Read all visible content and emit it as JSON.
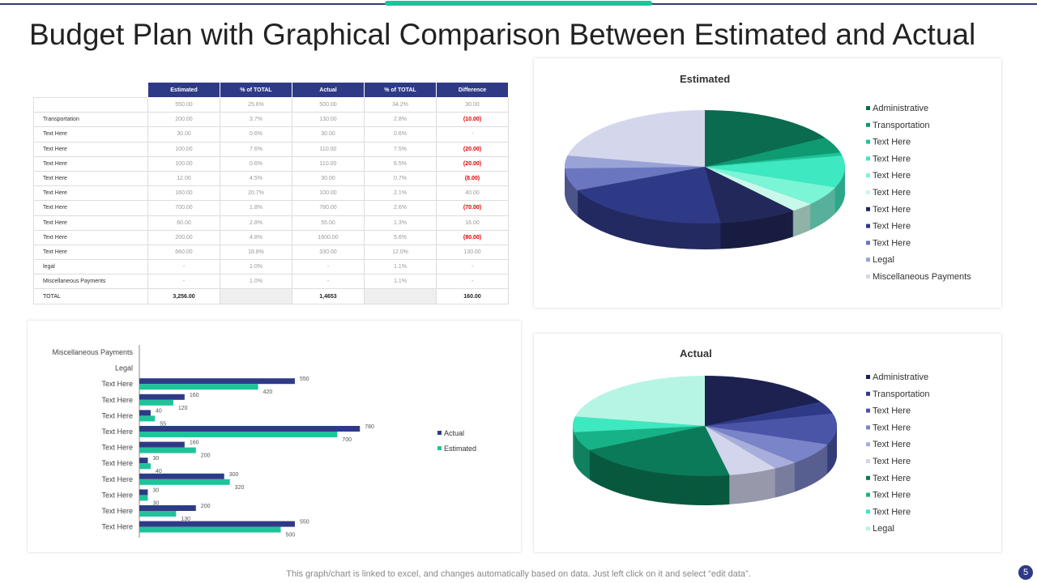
{
  "title": "Budget Plan with Graphical Comparison Between Estimated and Actual",
  "table": {
    "headers": [
      "Estimated",
      "% of TOTAL",
      "Actual",
      "% of TOTAL",
      "Difference"
    ],
    "rows": [
      {
        "label": "",
        "cells": [
          "550.00",
          "25.6%",
          "500.00",
          "34.2%",
          "30.00"
        ],
        "neg": false
      },
      {
        "label": "Transportation",
        "cells": [
          "200.00",
          "3.7%",
          "130.00",
          "2.8%",
          "(10.00)"
        ],
        "neg": true
      },
      {
        "label": "Text Here",
        "cells": [
          "30.00",
          "0.6%",
          "30.00",
          "0.6%",
          "-"
        ],
        "neg": false
      },
      {
        "label": "Text Here",
        "cells": [
          "100.00",
          "7.6%",
          "110.00",
          "7.5%",
          "(20.00)"
        ],
        "neg": true
      },
      {
        "label": "Text Here",
        "cells": [
          "100.00",
          "0.6%",
          "110.00",
          "6.5%",
          "(20.00)"
        ],
        "neg": true
      },
      {
        "label": "Text Here",
        "cells": [
          "12.00",
          "4.5%",
          "30.00",
          "0.7%",
          "(8.00)"
        ],
        "neg": true
      },
      {
        "label": "Text Here",
        "cells": [
          "160.00",
          "20.7%",
          "100.00",
          "2.1%",
          "40.00"
        ],
        "neg": false
      },
      {
        "label": "Text Here",
        "cells": [
          "700.00",
          "1.8%",
          "780.00",
          "2.6%",
          "(70.00)"
        ],
        "neg": true
      },
      {
        "label": "Text Here",
        "cells": [
          "60.00",
          "2.8%",
          "55.00",
          "1.3%",
          "16.00"
        ],
        "neg": false
      },
      {
        "label": "Text Here",
        "cells": [
          "200.00",
          "4.8%",
          "1600.00",
          "5.6%",
          "(80.00)"
        ],
        "neg": true
      },
      {
        "label": "Text Here",
        "cells": [
          "660.00",
          "18.8%",
          "330.00",
          "12.0%",
          "130.00"
        ],
        "neg": false
      },
      {
        "label": "legal",
        "cells": [
          "-",
          "1.0%",
          "-",
          "1.1%",
          "-"
        ],
        "neg": false
      },
      {
        "label": "Miscellaneous Payments",
        "cells": [
          "-",
          "1.0%",
          "-",
          "1.1%",
          "-"
        ],
        "neg": false
      }
    ],
    "total": {
      "label": "TOTAL",
      "cells": [
        "3,256.00",
        "",
        "1,4653",
        "",
        "160.00"
      ]
    }
  },
  "chart_data": [
    {
      "type": "bar",
      "orientation": "horizontal",
      "categories": [
        "Miscellaneous Payments",
        "Legal",
        "Text Here",
        "Text Here",
        "Text Here",
        "Text Here",
        "Text Here",
        "Text Here",
        "Text Here",
        "Text Here",
        "Text Here",
        "Text Here"
      ],
      "series": [
        {
          "name": "Actual",
          "color": "#2f3a87",
          "values": [
            null,
            null,
            550,
            160,
            40,
            780,
            160,
            30,
            300,
            30,
            200,
            550
          ]
        },
        {
          "name": "Estimated",
          "color": "#1fc39a",
          "values": [
            null,
            null,
            420,
            120,
            55,
            700,
            200,
            40,
            320,
            30,
            130,
            500
          ]
        }
      ],
      "legend": "right",
      "xlim": [
        0,
        800
      ]
    },
    {
      "type": "pie",
      "title": "Estimated",
      "legend": "right",
      "labels": [
        "Administrative",
        "Transportation",
        "Text Here",
        "Text Here",
        "Text Here",
        "Text Here",
        "Text Here",
        "Text Here",
        "Text Here",
        "Legal",
        "Miscellaneous Payments"
      ],
      "colors": [
        "#0b6b4f",
        "#0f9a72",
        "#1fc39a",
        "#3ee8c0",
        "#7af5d6",
        "#c8f8ea",
        "#23285a",
        "#2f3a87",
        "#6b76c0",
        "#9aa3d6",
        "#d4d7ec"
      ],
      "values": [
        18,
        5,
        1,
        10,
        6,
        3,
        10,
        22,
        7,
        4,
        24
      ]
    },
    {
      "type": "pie",
      "title": "Actual",
      "legend": "right",
      "labels": [
        "Administrative",
        "Transportation",
        "Text Here",
        "Text Here",
        "Text Here",
        "Text Here",
        "Text Here",
        "Text Here",
        "Text Here",
        "Legal"
      ],
      "colors": [
        "#1c2150",
        "#2f3a87",
        "#4a55a8",
        "#7a84c9",
        "#a7aedb",
        "#d2d5ec",
        "#0b7a58",
        "#17b386",
        "#3ee8c0",
        "#b6f5e3"
      ],
      "values": [
        17,
        4,
        10,
        7,
        3,
        6,
        20,
        6,
        5,
        22
      ]
    }
  ],
  "footer": "This graph/chart is linked to excel,  and changes automatically based on data. Just left click on it and select “edit data”.",
  "page_number": "5"
}
